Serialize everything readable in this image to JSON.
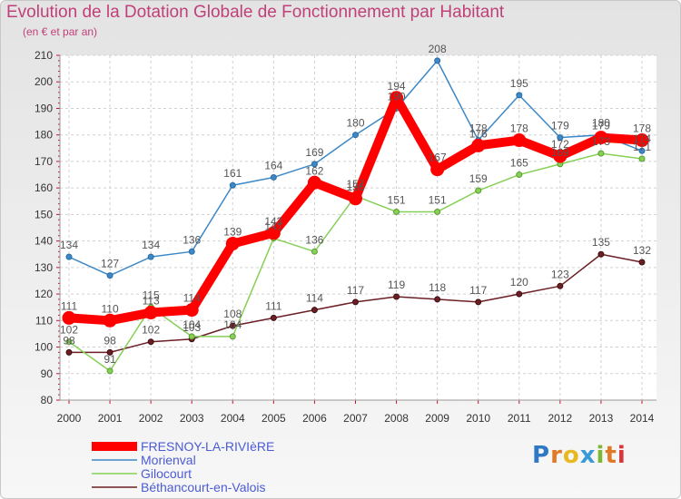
{
  "title": "Evolution de la Dotation Globale de Fonctionnement par Habitant",
  "subtitle": "(en € et par an)",
  "logo": {
    "text": "Proxiti",
    "letters": [
      "P",
      "r",
      "o",
      "x",
      "i",
      "t",
      "i"
    ],
    "colors": [
      "#2f78c4",
      "#e07a26",
      "#e8b820",
      "#3a9ad8",
      "#7cb832",
      "#e07a26",
      "#d8353a"
    ]
  },
  "colors": {
    "title": "#c0407a",
    "axis_tick": "#c8102e",
    "legend_text": "#4b5bd6"
  },
  "chart_data": {
    "type": "line",
    "title": "Evolution de la Dotation Globale de Fonctionnement par Habitant",
    "subtitle": "(en € et par an)",
    "xlabel": "",
    "ylabel": "",
    "x": [
      "2000",
      "2001",
      "2002",
      "2003",
      "2004",
      "2005",
      "2006",
      "2007",
      "2008",
      "2009",
      "2010",
      "2011",
      "2012",
      "2013",
      "2014"
    ],
    "ylim": [
      80,
      210
    ],
    "yticks": [
      80,
      90,
      100,
      110,
      120,
      130,
      140,
      150,
      160,
      170,
      180,
      190,
      200,
      210
    ],
    "grid": true,
    "legend_position": "bottom-left",
    "series": [
      {
        "name": "FRESNOY-LA-RIVIèRE",
        "color": "#ff0000",
        "values": [
          111,
          110,
          113,
          114,
          139,
          143,
          162,
          156,
          194,
          167,
          176,
          178,
          172,
          179,
          178
        ],
        "labels": [
          "111",
          "110",
          "113",
          "114",
          "139",
          "143",
          "162",
          "156",
          "194",
          "167",
          "176",
          "178",
          "172",
          "179",
          "178"
        ]
      },
      {
        "name": "Morienval",
        "color": "#3d89c8",
        "values": [
          134,
          127,
          134,
          136,
          161,
          164,
          169,
          180,
          190,
          208,
          178,
          195,
          179,
          180,
          174
        ],
        "labels": [
          "134",
          "127",
          "134",
          "136",
          "161",
          "164",
          "169",
          "180",
          "190",
          "208",
          "178",
          "195",
          "179",
          "180",
          "174"
        ]
      },
      {
        "name": "Gilocourt",
        "color": "#86d056",
        "values": [
          102,
          91,
          115,
          104,
          104,
          141,
          136,
          157,
          151,
          151,
          159,
          165,
          169,
          173,
          171
        ],
        "labels": [
          "102",
          "91",
          "115",
          "104",
          "104",
          "141",
          "136",
          "157",
          "151",
          "151",
          "159",
          "165",
          "169",
          "173",
          "171"
        ]
      },
      {
        "name": "Béthancourt-en-Valois",
        "color": "#6b1f24",
        "values": [
          98,
          98,
          102,
          103,
          108,
          111,
          114,
          117,
          119,
          118,
          117,
          120,
          123,
          135,
          132
        ],
        "labels": [
          "98",
          "98",
          "102",
          "103",
          "108",
          "111",
          "114",
          "117",
          "119",
          "118",
          "117",
          "120",
          "123",
          "135",
          "132"
        ]
      }
    ]
  }
}
